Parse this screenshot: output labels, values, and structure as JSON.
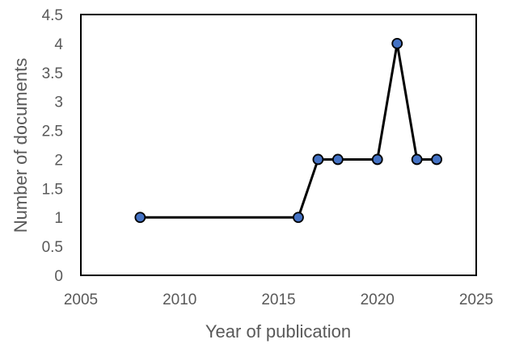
{
  "chart_data": {
    "type": "line",
    "title": "",
    "xlabel": "Year of publication",
    "ylabel": "Number of documents",
    "xlim": [
      2005,
      2025
    ],
    "ylim": [
      0,
      4.5
    ],
    "x_ticks": [
      2005,
      2010,
      2015,
      2020,
      2025
    ],
    "y_ticks": [
      "0",
      "0.5",
      "1",
      "1.5",
      "2",
      "2.5",
      "3",
      "3.5",
      "4",
      "4.5"
    ],
    "y_tick_values": [
      0,
      0.5,
      1,
      1.5,
      2,
      2.5,
      3,
      3.5,
      4,
      4.5
    ],
    "grid": false,
    "legend": "none",
    "series": [
      {
        "x": [
          2008,
          2016,
          2017,
          2018,
          2020,
          2021,
          2022,
          2023
        ],
        "y": [
          1,
          1,
          2,
          2,
          2,
          4,
          2,
          2
        ],
        "line_color": "#000000",
        "marker_fill": "#4472C4",
        "marker_edge": "#000000"
      }
    ]
  }
}
